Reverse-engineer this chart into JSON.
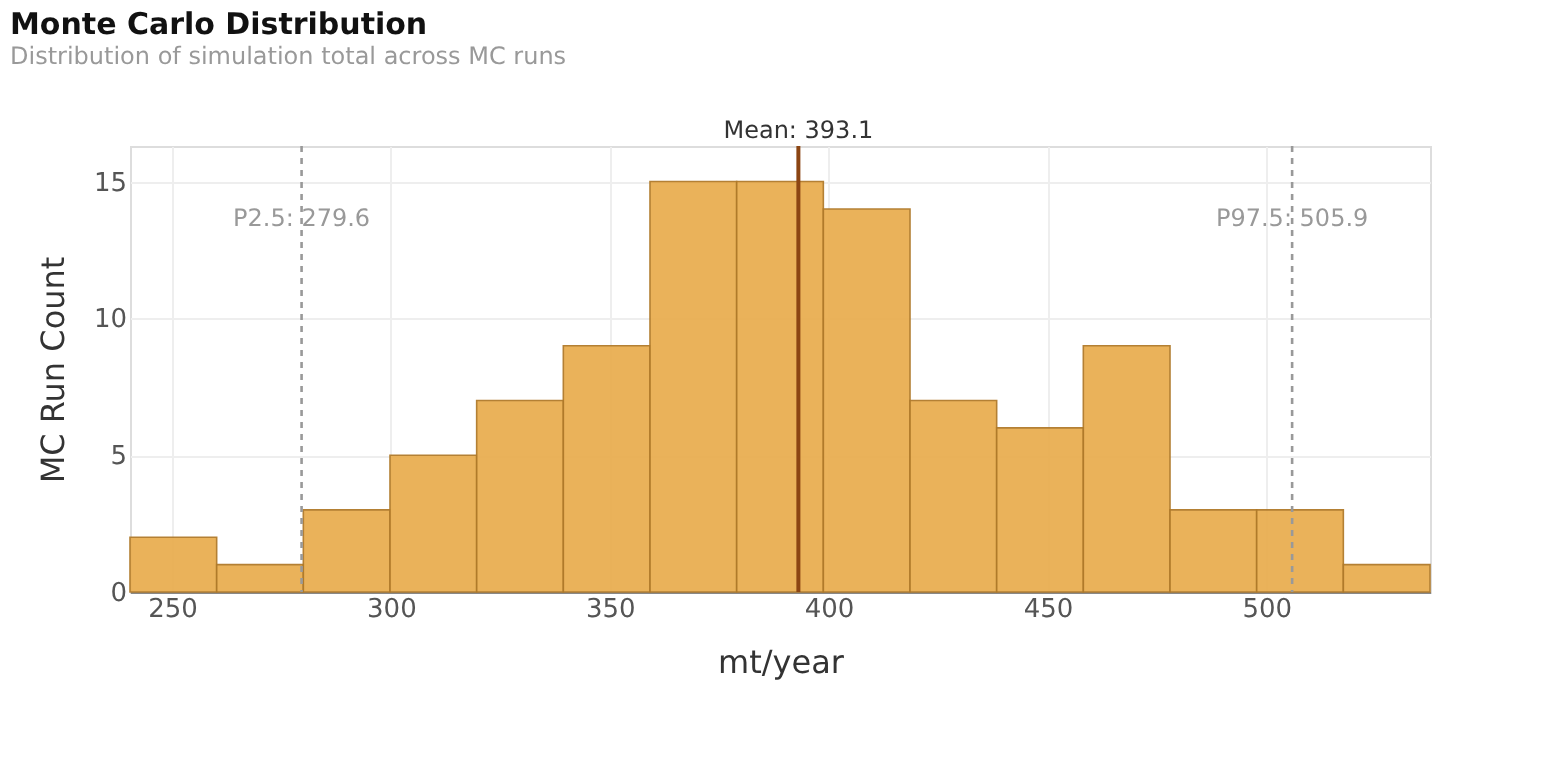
{
  "chart_data": {
    "type": "histogram",
    "title": "Monte Carlo Distribution",
    "subtitle": "Distribution of simulation total across MC runs",
    "xlabel": "mt/year",
    "ylabel": "MC Run Count",
    "bins": [
      240.4,
      260.2,
      280.0,
      299.8,
      319.6,
      339.4,
      359.2,
      379.0,
      398.8,
      418.6,
      438.4,
      458.2,
      478.0,
      497.8,
      517.6,
      537.4
    ],
    "values": [
      2,
      1,
      3,
      5,
      7,
      9,
      15,
      15,
      14,
      7,
      6,
      9,
      3,
      3,
      1
    ],
    "color": "#e9ae52",
    "xlim": [
      240.4,
      537.4
    ],
    "xticks": [
      250,
      300,
      350,
      400,
      450,
      500
    ],
    "ylim": [
      0,
      16.3
    ],
    "yticks": [
      0,
      5,
      10,
      15
    ],
    "grid": true,
    "ref_lines": [
      {
        "axis": "x",
        "value": 393.1,
        "label": "Mean: 393.1",
        "color": "#8b4513",
        "line_style": "solid"
      },
      {
        "axis": "x",
        "value": 279.6,
        "label": "P2.5: 279.6",
        "color": "#999999",
        "line_style": "dashed"
      },
      {
        "axis": "x",
        "value": 505.9,
        "label": "P97.5: 505.9",
        "color": "#999999",
        "line_style": "dashed"
      }
    ]
  }
}
